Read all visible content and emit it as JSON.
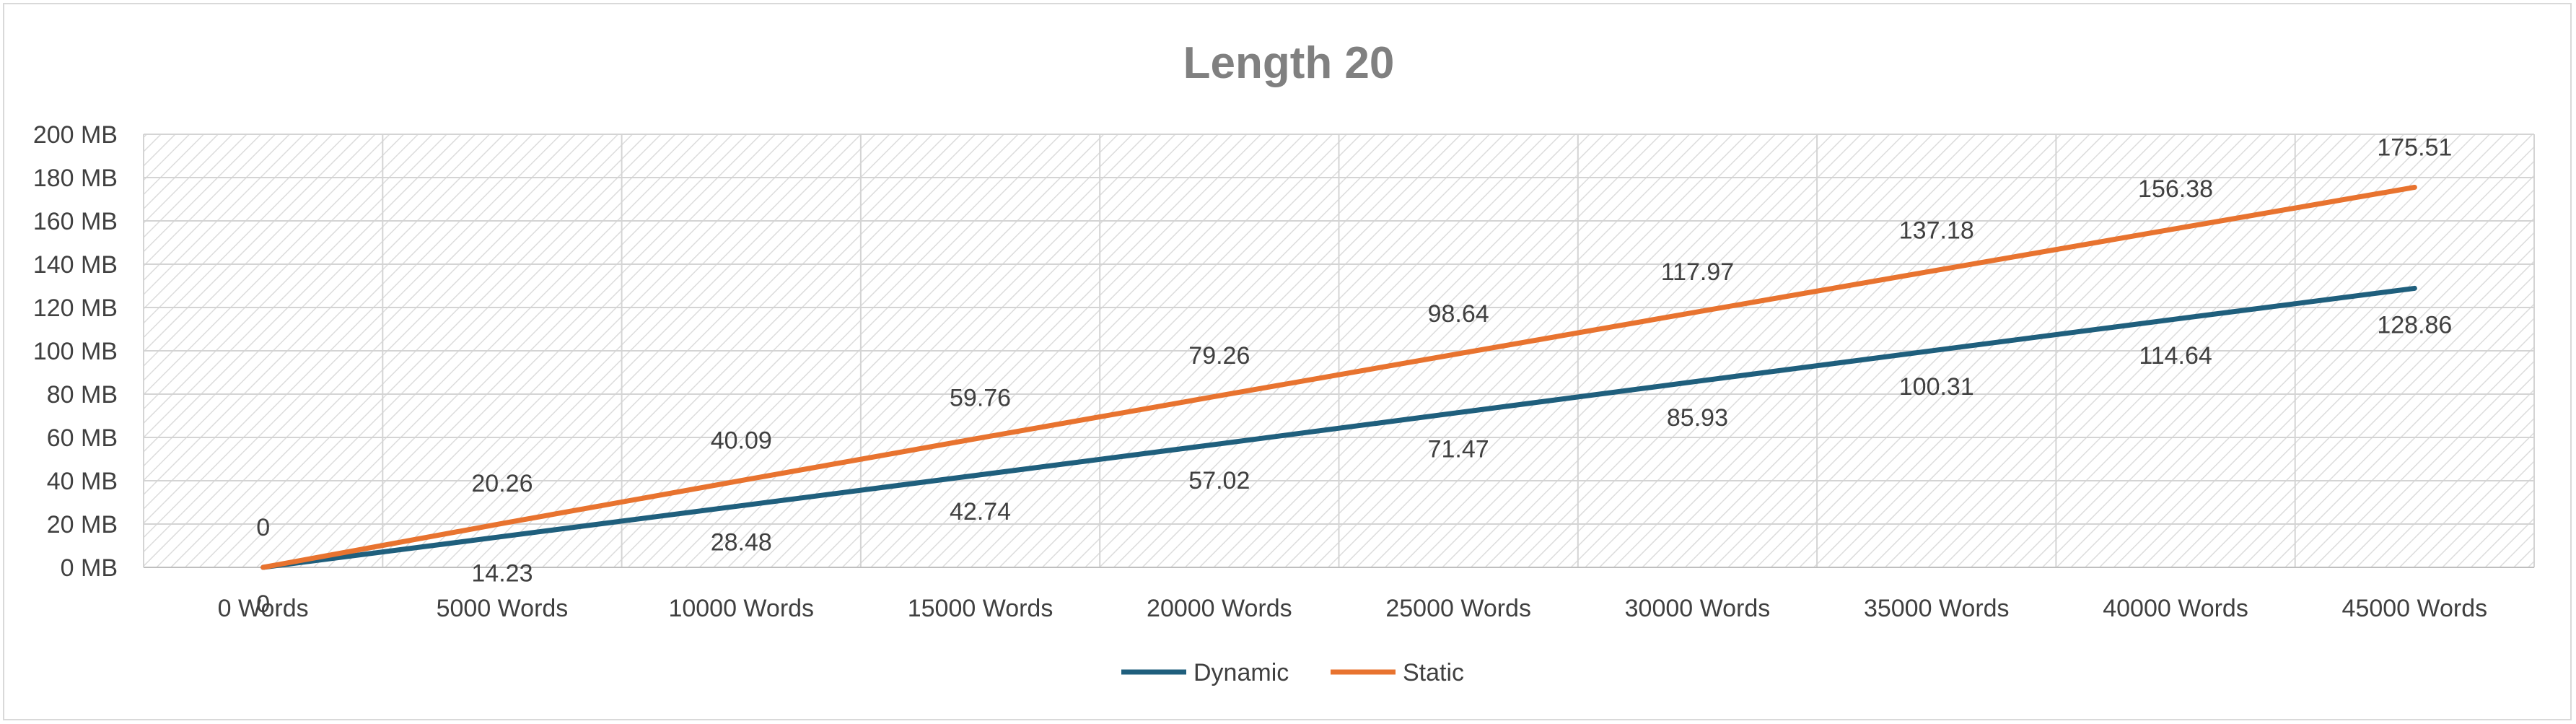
{
  "chart_data": {
    "type": "line",
    "title": "Length 20",
    "categories": [
      "0 Words",
      "5000 Words",
      "10000 Words",
      "15000 Words",
      "20000 Words",
      "25000 Words",
      "30000 Words",
      "35000 Words",
      "40000 Words",
      "45000 Words"
    ],
    "series": [
      {
        "name": "Dynamic",
        "color": "#1f5f7d",
        "values": [
          0,
          14.23,
          28.48,
          42.74,
          57.02,
          71.47,
          85.93,
          100.31,
          114.64,
          128.86
        ]
      },
      {
        "name": "Static",
        "color": "#e8732f",
        "values": [
          0,
          20.26,
          40.09,
          59.76,
          79.26,
          98.64,
          117.97,
          137.18,
          156.38,
          175.51
        ]
      }
    ],
    "y_ticks": [
      "0 MB",
      "20 MB",
      "40 MB",
      "60 MB",
      "80 MB",
      "100 MB",
      "120 MB",
      "140 MB",
      "160 MB",
      "180 MB",
      "200 MB"
    ],
    "ylim": [
      0,
      200
    ],
    "legend_position": "bottom",
    "grid": true
  }
}
